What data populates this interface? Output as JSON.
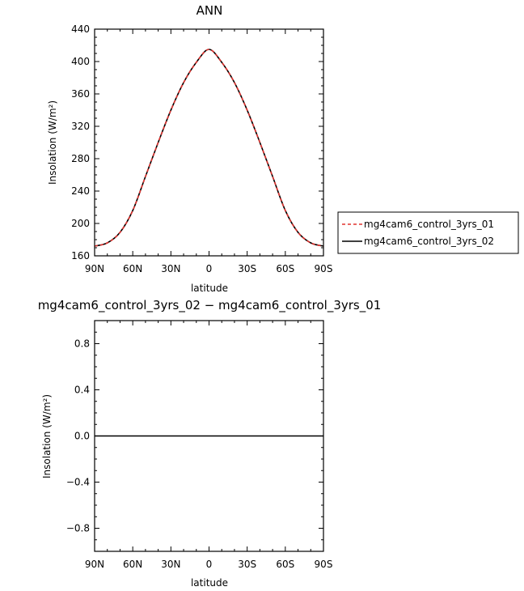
{
  "chart_data": [
    {
      "type": "line",
      "title": "ANN",
      "xlabel": "latitude",
      "ylabel": "Insolation (W/m²)",
      "x_ticks": [
        "90N",
        "60N",
        "30N",
        "0",
        "30S",
        "60S",
        "90S"
      ],
      "x_tick_values": [
        90,
        60,
        30,
        0,
        -30,
        -60,
        -90
      ],
      "xlim": [
        90,
        -90
      ],
      "y_ticks": [
        "160",
        "200",
        "240",
        "280",
        "320",
        "360",
        "400",
        "440"
      ],
      "y_tick_values": [
        160,
        200,
        240,
        280,
        320,
        360,
        400,
        440
      ],
      "ylim": [
        160,
        440
      ],
      "legend_position": "right",
      "x": [
        90,
        80,
        70,
        60,
        50,
        40,
        30,
        20,
        10,
        0,
        -10,
        -20,
        -30,
        -40,
        -50,
        -60,
        -70,
        -80,
        -90
      ],
      "series": [
        {
          "name": "mg4cam6_control_3yrs_01",
          "color": "#e0332f",
          "dash": "dashed",
          "values": [
            172,
            176,
            189,
            216,
            258,
            300,
            340,
            374,
            399,
            415,
            399,
            374,
            340,
            300,
            258,
            216,
            189,
            176,
            172
          ]
        },
        {
          "name": "mg4cam6_control_3yrs_02",
          "color": "#000000",
          "dash": "solid",
          "values": [
            172,
            176,
            189,
            216,
            258,
            300,
            340,
            374,
            399,
            415,
            399,
            374,
            340,
            300,
            258,
            216,
            189,
            176,
            172
          ]
        }
      ]
    },
    {
      "type": "line",
      "title": "mg4cam6_control_3yrs_02 − mg4cam6_control_3yrs_01",
      "xlabel": "latitude",
      "ylabel": "Insolation (W/m²)",
      "x_ticks": [
        "90N",
        "60N",
        "30N",
        "0",
        "30S",
        "60S",
        "90S"
      ],
      "x_tick_values": [
        90,
        60,
        30,
        0,
        -30,
        -60,
        -90
      ],
      "xlim": [
        90,
        -90
      ],
      "y_ticks": [
        "−0.8",
        "−0.4",
        "0.0",
        "0.4",
        "0.8"
      ],
      "y_tick_values": [
        -0.8,
        -0.4,
        0.0,
        0.4,
        0.8
      ],
      "ylim": [
        -1.0,
        1.0
      ],
      "x": [
        90,
        -90
      ],
      "series": [
        {
          "color": "#000000",
          "dash": "solid",
          "values": [
            0.0,
            0.0
          ]
        }
      ]
    }
  ]
}
